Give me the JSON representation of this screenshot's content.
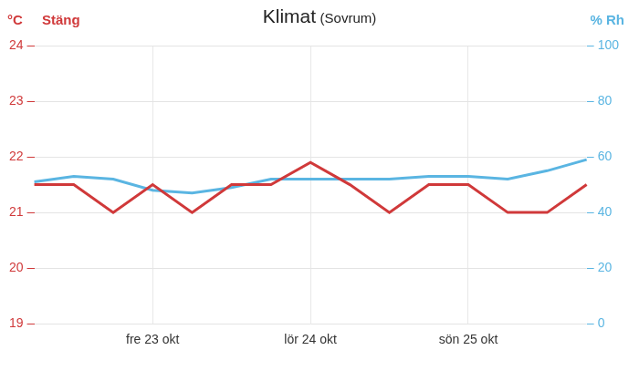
{
  "chart_data": {
    "type": "line",
    "title": "Klimat",
    "subtitle": "(Sovrum)",
    "ylabel": "°C",
    "y2label": "% Rh",
    "annotations": [
      {
        "text": "Stäng",
        "color": "#d0393a"
      }
    ],
    "categories": [
      null,
      null,
      null,
      "fre 23 okt",
      null,
      null,
      null,
      "lör 24 okt",
      null,
      null,
      null,
      "sön 25 okt",
      null,
      null,
      null
    ],
    "series": [
      {
        "color": "#d0393a",
        "values": [
          21.5,
          21.5,
          21.0,
          21.5,
          21.0,
          21.5,
          21.5,
          21.9,
          21.5,
          21.0,
          21.5,
          21.5,
          21.0,
          21.0,
          21.5
        ]
      },
      {
        "color": "#5ab5e2",
        "axis": "y2",
        "values": [
          51,
          53,
          52,
          48,
          47,
          49,
          52,
          52,
          52,
          52,
          53,
          53,
          52,
          55,
          59
        ]
      }
    ],
    "ylim": [
      19,
      24
    ],
    "yticks": [
      19,
      20,
      21,
      22,
      23,
      24
    ],
    "y2lim": [
      0,
      100
    ],
    "y2ticks": [
      0,
      20,
      40,
      60,
      80,
      100
    ],
    "grid": true
  }
}
